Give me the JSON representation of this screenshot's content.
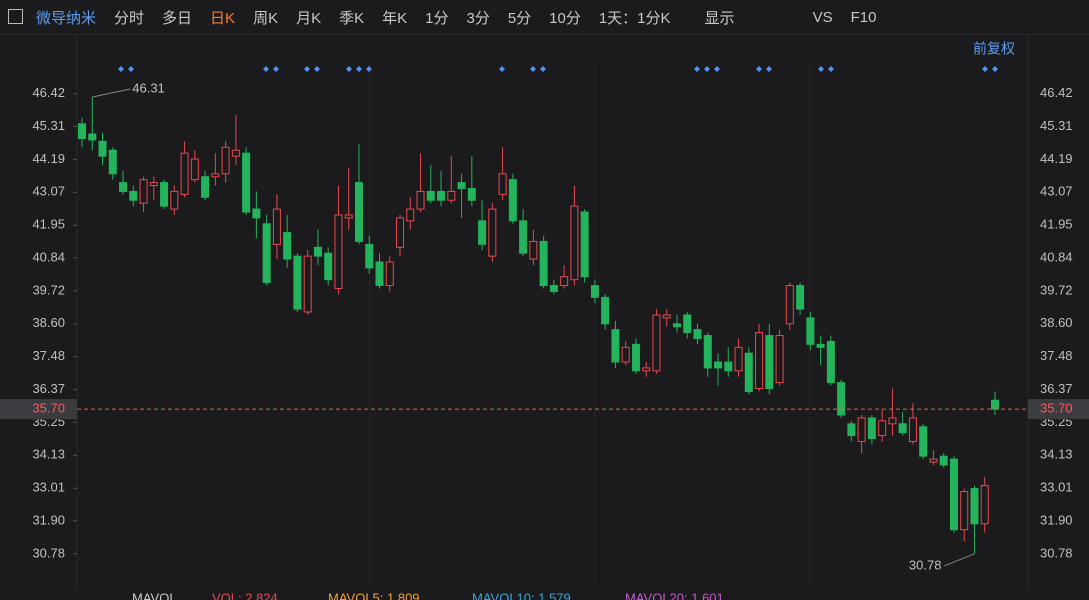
{
  "toolbar": {
    "stock_name": "微导纳米",
    "tabs": [
      "分时",
      "多日",
      "日K",
      "周K",
      "月K",
      "季K",
      "年K",
      "1分",
      "3分",
      "5分",
      "10分",
      "1天：1分K"
    ],
    "active_tab": 2,
    "display": "显示",
    "vs": "VS",
    "f10": "F10",
    "adjust": "前复权"
  },
  "chart_data": {
    "type": "candlestick",
    "up_color": "#e8484d",
    "down_color": "#23b45c",
    "series": [
      {
        "open": [
          45.4,
          45.05,
          44.8,
          44.5,
          43.4,
          43.1,
          42.7,
          43.3,
          43.4,
          42.5,
          43.0,
          43.5,
          43.6,
          43.6,
          43.7,
          44.3,
          44.4,
          42.5,
          42.0,
          41.3,
          41.7,
          40.9,
          39.0,
          41.2,
          41.0,
          39.8,
          42.2,
          43.4,
          41.3,
          40.7,
          39.9,
          41.2,
          42.1,
          42.5,
          43.1,
          43.1,
          42.8,
          43.4,
          43.2,
          42.1,
          40.9,
          43.0,
          43.5,
          42.1,
          40.8,
          41.4,
          39.9,
          39.9,
          40.1,
          42.4,
          39.9,
          39.5,
          38.4,
          37.3,
          37.9,
          37.0,
          37.0,
          38.8,
          38.6,
          38.9,
          38.4,
          38.2,
          37.3,
          37.3,
          37.0,
          37.6,
          36.4,
          38.2,
          36.6,
          38.6,
          39.9,
          38.8,
          37.9,
          38.0,
          36.6,
          35.2,
          34.6,
          35.4,
          34.8,
          35.2,
          35.2,
          34.6,
          35.1,
          33.9,
          34.1,
          34.0,
          31.6,
          33.0,
          31.8,
          36.0
        ],
        "high": [
          45.6,
          46.31,
          45.1,
          44.6,
          43.8,
          43.3,
          43.6,
          43.6,
          43.5,
          43.3,
          44.8,
          44.5,
          43.8,
          44.4,
          44.8,
          45.7,
          44.6,
          43.1,
          42.3,
          43.0,
          42.3,
          41.0,
          41.1,
          41.8,
          41.2,
          43.3,
          43.9,
          44.7,
          41.6,
          41.0,
          40.9,
          42.3,
          42.9,
          44.4,
          44.0,
          43.8,
          44.3,
          43.7,
          44.3,
          42.8,
          42.7,
          44.6,
          43.7,
          42.5,
          41.8,
          41.6,
          40.1,
          40.6,
          43.3,
          42.5,
          40.1,
          39.6,
          38.7,
          38.0,
          38.1,
          37.3,
          39.1,
          39.1,
          38.9,
          39.0,
          38.6,
          38.3,
          37.6,
          37.8,
          38.1,
          37.8,
          38.6,
          38.6,
          38.4,
          40.0,
          40.0,
          39.0,
          38.2,
          38.2,
          36.7,
          35.3,
          35.5,
          35.5,
          35.7,
          36.4,
          35.6,
          35.9,
          35.2,
          34.3,
          34.2,
          34.1,
          33.0,
          33.1,
          33.4,
          36.3
        ],
        "low": [
          44.6,
          44.5,
          44.0,
          43.5,
          43.0,
          42.6,
          42.4,
          42.8,
          42.5,
          42.3,
          42.9,
          43.4,
          42.8,
          43.3,
          43.4,
          44.0,
          42.3,
          41.5,
          39.9,
          40.8,
          40.5,
          39.0,
          38.9,
          40.6,
          39.9,
          39.6,
          41.8,
          41.3,
          40.3,
          39.8,
          39.7,
          40.9,
          41.8,
          42.4,
          42.7,
          42.6,
          42.7,
          42.2,
          42.6,
          41.1,
          40.7,
          42.8,
          42.0,
          40.9,
          40.6,
          39.8,
          39.6,
          39.8,
          39.9,
          40.0,
          39.3,
          38.4,
          37.1,
          37.2,
          36.9,
          36.8,
          36.9,
          38.5,
          38.3,
          38.1,
          37.9,
          36.8,
          36.5,
          36.8,
          36.8,
          36.2,
          36.3,
          36.2,
          36.5,
          38.4,
          38.9,
          37.7,
          37.2,
          36.5,
          35.4,
          34.6,
          34.2,
          34.5,
          34.6,
          34.8,
          34.8,
          34.5,
          34.0,
          33.8,
          33.7,
          31.5,
          31.2,
          30.78,
          31.5,
          35.5
        ],
        "close": [
          44.9,
          44.85,
          44.3,
          43.7,
          43.1,
          42.8,
          43.5,
          43.4,
          42.6,
          43.1,
          44.4,
          44.2,
          42.9,
          43.7,
          44.6,
          44.5,
          42.4,
          42.2,
          40.0,
          42.5,
          40.8,
          39.1,
          40.9,
          40.9,
          40.1,
          42.3,
          42.3,
          41.4,
          40.5,
          39.9,
          40.7,
          42.2,
          42.5,
          43.1,
          42.8,
          42.8,
          43.1,
          43.2,
          42.8,
          41.3,
          42.5,
          43.7,
          42.1,
          41.0,
          41.4,
          39.9,
          39.7,
          40.2,
          42.6,
          40.2,
          39.5,
          38.6,
          37.3,
          37.8,
          37.0,
          37.1,
          38.9,
          38.9,
          38.5,
          38.3,
          38.1,
          37.1,
          37.1,
          37.0,
          37.8,
          36.3,
          38.3,
          36.4,
          38.2,
          39.9,
          39.1,
          37.9,
          37.8,
          36.6,
          35.5,
          34.8,
          35.4,
          34.7,
          35.3,
          35.4,
          34.9,
          35.4,
          34.1,
          34.0,
          33.8,
          31.6,
          32.9,
          31.8,
          33.1,
          35.7
        ]
      }
    ],
    "ylim": [
      29.72,
      47.5
    ],
    "yticks": [
      46.42,
      45.31,
      44.19,
      43.07,
      41.95,
      40.84,
      39.72,
      {
        "value": 38.6,
        "label": "38.60"
      },
      37.48,
      36.37,
      35.25,
      34.13,
      33.01,
      {
        "value": 31.9,
        "label": "31.90"
      },
      30.78
    ],
    "last_price": {
      "value": 35.7,
      "label": "35.70"
    },
    "high_mark": 46.31,
    "low_mark": 30.78,
    "indicator": {
      "name": "MAVOL",
      "items": [
        "VOL: 2.824",
        "MAVOL5: 1.809",
        "MAVOL10: 1.579",
        "MAVOL20: 1.601"
      ]
    }
  }
}
